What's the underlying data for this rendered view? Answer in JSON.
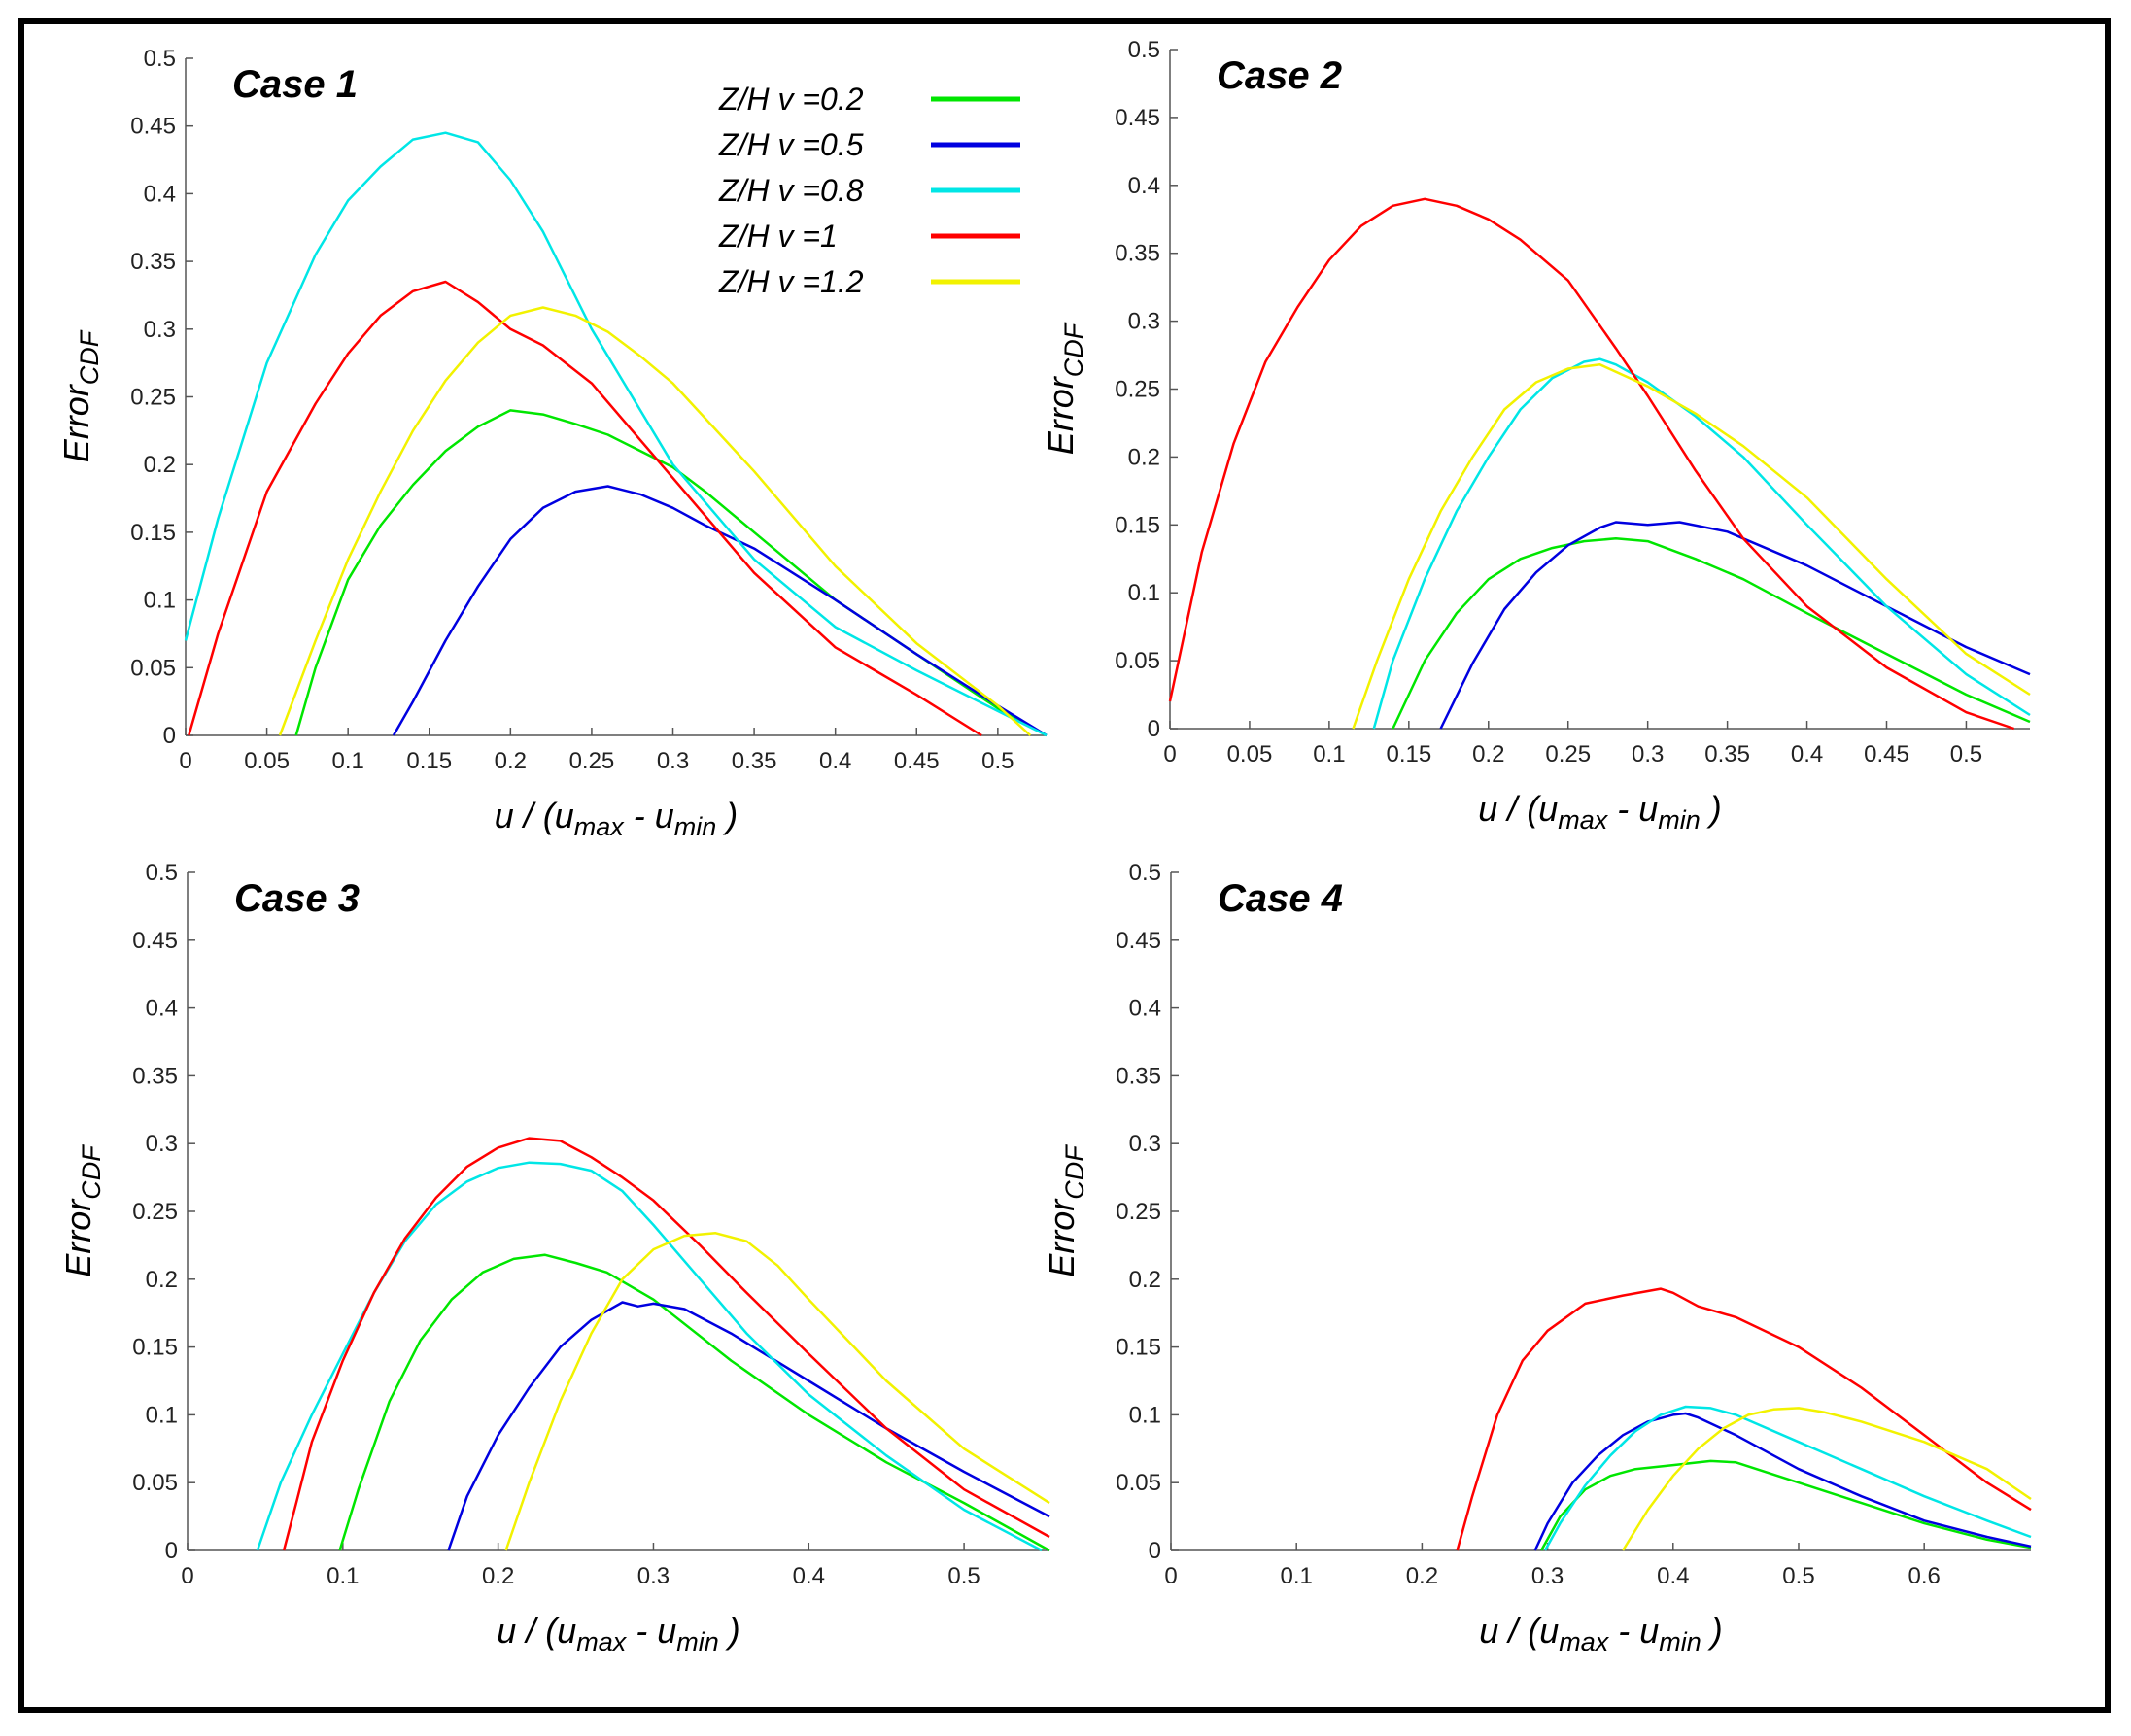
{
  "legend": [
    {
      "label": "Z/H v =0.2",
      "color": "#00e600"
    },
    {
      "label": "Z/H v =0.5",
      "color": "#0000e0"
    },
    {
      "label": "Z/H v =0.8",
      "color": "#00e6e6"
    },
    {
      "label": "Z/H v =1",
      "color": "#ff0000"
    },
    {
      "label": "Z/H v =1.2",
      "color": "#f2f200"
    }
  ],
  "chart_data": [
    {
      "type": "line",
      "title": "Case 1",
      "xlabel": {
        "main": "u / (u",
        "sub1": "max",
        "mid": " - u",
        "sub2": "min",
        "end": " )"
      },
      "ylabel": {
        "main": "Error",
        "sub": "CDF"
      },
      "xlim": [
        0,
        0.53
      ],
      "ylim": [
        0,
        0.5
      ],
      "xticks": [
        0,
        0.05,
        0.1,
        0.15,
        0.2,
        0.25,
        0.3,
        0.35,
        0.4,
        0.45,
        0.5
      ],
      "yticks": [
        0,
        0.05,
        0.1,
        0.15,
        0.2,
        0.25,
        0.3,
        0.35,
        0.4,
        0.45,
        0.5
      ],
      "series": [
        {
          "name": "Z/H v =0.2",
          "x": [
            0.068,
            0.08,
            0.1,
            0.12,
            0.14,
            0.16,
            0.18,
            0.2,
            0.22,
            0.24,
            0.26,
            0.28,
            0.3,
            0.32,
            0.35,
            0.4,
            0.45,
            0.5,
            0.53
          ],
          "y": [
            0,
            0.05,
            0.115,
            0.155,
            0.185,
            0.21,
            0.228,
            0.24,
            0.237,
            0.23,
            0.222,
            0.21,
            0.198,
            0.18,
            0.15,
            0.1,
            0.06,
            0.02,
            0
          ]
        },
        {
          "name": "Z/H v =0.5",
          "x": [
            0.128,
            0.14,
            0.16,
            0.18,
            0.2,
            0.22,
            0.24,
            0.26,
            0.28,
            0.3,
            0.32,
            0.35,
            0.4,
            0.45,
            0.5,
            0.53
          ],
          "y": [
            0,
            0.025,
            0.07,
            0.11,
            0.145,
            0.168,
            0.18,
            0.184,
            0.178,
            0.168,
            0.155,
            0.138,
            0.1,
            0.06,
            0.022,
            0
          ]
        },
        {
          "name": "Z/H v =0.8",
          "x": [
            0,
            0.02,
            0.05,
            0.08,
            0.1,
            0.12,
            0.14,
            0.16,
            0.18,
            0.2,
            0.22,
            0.25,
            0.3,
            0.35,
            0.4,
            0.45,
            0.5,
            0.53
          ],
          "y": [
            0.07,
            0.16,
            0.275,
            0.355,
            0.395,
            0.42,
            0.44,
            0.445,
            0.438,
            0.41,
            0.372,
            0.3,
            0.2,
            0.13,
            0.08,
            0.048,
            0.018,
            0
          ]
        },
        {
          "name": "Z/H v =1",
          "x": [
            0.002,
            0.02,
            0.05,
            0.08,
            0.1,
            0.12,
            0.14,
            0.16,
            0.18,
            0.2,
            0.22,
            0.25,
            0.3,
            0.35,
            0.4,
            0.45,
            0.49
          ],
          "y": [
            0,
            0.075,
            0.18,
            0.245,
            0.282,
            0.31,
            0.328,
            0.335,
            0.32,
            0.3,
            0.288,
            0.26,
            0.19,
            0.12,
            0.065,
            0.03,
            0
          ]
        },
        {
          "name": "Z/H v =1.2",
          "x": [
            0.058,
            0.08,
            0.1,
            0.12,
            0.14,
            0.16,
            0.18,
            0.2,
            0.22,
            0.24,
            0.26,
            0.28,
            0.3,
            0.35,
            0.4,
            0.45,
            0.5,
            0.52
          ],
          "y": [
            0,
            0.07,
            0.13,
            0.18,
            0.225,
            0.262,
            0.29,
            0.31,
            0.316,
            0.31,
            0.298,
            0.28,
            0.26,
            0.195,
            0.125,
            0.068,
            0.022,
            0
          ]
        }
      ]
    },
    {
      "type": "line",
      "title": "Case 2",
      "xlabel": {
        "main": "u / (u",
        "sub1": "max",
        "mid": " - u",
        "sub2": "min",
        "end": " )"
      },
      "ylabel": {
        "main": "Error",
        "sub": "CDF"
      },
      "xlim": [
        0,
        0.54
      ],
      "ylim": [
        0,
        0.5
      ],
      "xticks": [
        0,
        0.05,
        0.1,
        0.15,
        0.2,
        0.25,
        0.3,
        0.35,
        0.4,
        0.45,
        0.5
      ],
      "yticks": [
        0,
        0.05,
        0.1,
        0.15,
        0.2,
        0.25,
        0.3,
        0.35,
        0.4,
        0.45,
        0.5
      ],
      "series": [
        {
          "name": "Z/H v =0.2",
          "x": [
            0.14,
            0.16,
            0.18,
            0.2,
            0.22,
            0.24,
            0.26,
            0.28,
            0.3,
            0.33,
            0.36,
            0.4,
            0.45,
            0.5,
            0.54
          ],
          "y": [
            0,
            0.05,
            0.085,
            0.11,
            0.125,
            0.133,
            0.138,
            0.14,
            0.138,
            0.125,
            0.11,
            0.085,
            0.055,
            0.025,
            0.005
          ]
        },
        {
          "name": "Z/H v =0.5",
          "x": [
            0.17,
            0.19,
            0.21,
            0.23,
            0.25,
            0.27,
            0.28,
            0.3,
            0.32,
            0.35,
            0.4,
            0.45,
            0.5,
            0.54
          ],
          "y": [
            0,
            0.048,
            0.088,
            0.115,
            0.135,
            0.148,
            0.152,
            0.15,
            0.152,
            0.145,
            0.12,
            0.09,
            0.06,
            0.04
          ]
        },
        {
          "name": "Z/H v =0.8",
          "x": [
            0.128,
            0.14,
            0.16,
            0.18,
            0.2,
            0.22,
            0.24,
            0.26,
            0.27,
            0.28,
            0.3,
            0.33,
            0.36,
            0.4,
            0.45,
            0.5,
            0.54
          ],
          "y": [
            0,
            0.05,
            0.11,
            0.16,
            0.2,
            0.235,
            0.258,
            0.27,
            0.272,
            0.268,
            0.255,
            0.23,
            0.2,
            0.15,
            0.09,
            0.04,
            0.01
          ]
        },
        {
          "name": "Z/H v =1",
          "x": [
            0,
            0.02,
            0.04,
            0.06,
            0.08,
            0.1,
            0.12,
            0.14,
            0.16,
            0.18,
            0.2,
            0.22,
            0.25,
            0.28,
            0.3,
            0.33,
            0.36,
            0.4,
            0.45,
            0.5,
            0.53
          ],
          "y": [
            0.02,
            0.13,
            0.21,
            0.27,
            0.31,
            0.345,
            0.37,
            0.385,
            0.39,
            0.385,
            0.375,
            0.36,
            0.33,
            0.28,
            0.245,
            0.19,
            0.14,
            0.09,
            0.045,
            0.012,
            0
          ]
        },
        {
          "name": "Z/H v =1.2",
          "x": [
            0.115,
            0.13,
            0.15,
            0.17,
            0.19,
            0.21,
            0.23,
            0.25,
            0.27,
            0.3,
            0.33,
            0.36,
            0.4,
            0.45,
            0.5,
            0.54
          ],
          "y": [
            0,
            0.05,
            0.11,
            0.16,
            0.2,
            0.235,
            0.255,
            0.265,
            0.268,
            0.252,
            0.232,
            0.208,
            0.17,
            0.11,
            0.055,
            0.025
          ]
        }
      ]
    },
    {
      "type": "line",
      "title": "Case 3",
      "xlabel": {
        "main": "u / (u",
        "sub1": "max",
        "mid": " - u",
        "sub2": "min",
        "end": " )"
      },
      "ylabel": {
        "main": "Error",
        "sub": "CDF"
      },
      "xlim": [
        0,
        0.555
      ],
      "ylim": [
        0,
        0.5
      ],
      "xticks": [
        0,
        0.1,
        0.2,
        0.3,
        0.4,
        0.5
      ],
      "yticks": [
        0,
        0.05,
        0.1,
        0.15,
        0.2,
        0.25,
        0.3,
        0.35,
        0.4,
        0.45,
        0.5
      ],
      "series": [
        {
          "name": "Z/H v =0.2",
          "x": [
            0.098,
            0.11,
            0.13,
            0.15,
            0.17,
            0.19,
            0.21,
            0.23,
            0.25,
            0.27,
            0.3,
            0.35,
            0.4,
            0.45,
            0.5,
            0.555
          ],
          "y": [
            0,
            0.045,
            0.11,
            0.155,
            0.185,
            0.205,
            0.215,
            0.218,
            0.212,
            0.205,
            0.185,
            0.14,
            0.1,
            0.065,
            0.035,
            0
          ]
        },
        {
          "name": "Z/H v =0.5",
          "x": [
            0.168,
            0.18,
            0.2,
            0.22,
            0.24,
            0.26,
            0.28,
            0.29,
            0.3,
            0.32,
            0.35,
            0.4,
            0.45,
            0.5,
            0.555
          ],
          "y": [
            0,
            0.04,
            0.085,
            0.12,
            0.15,
            0.17,
            0.183,
            0.18,
            0.182,
            0.178,
            0.16,
            0.125,
            0.09,
            0.058,
            0.025
          ]
        },
        {
          "name": "Z/H v =0.8",
          "x": [
            0.045,
            0.06,
            0.08,
            0.1,
            0.12,
            0.14,
            0.16,
            0.18,
            0.2,
            0.22,
            0.24,
            0.26,
            0.28,
            0.3,
            0.33,
            0.36,
            0.4,
            0.45,
            0.5,
            0.55
          ],
          "y": [
            0,
            0.05,
            0.1,
            0.145,
            0.19,
            0.228,
            0.255,
            0.272,
            0.282,
            0.286,
            0.285,
            0.28,
            0.265,
            0.24,
            0.2,
            0.16,
            0.115,
            0.07,
            0.03,
            0
          ]
        },
        {
          "name": "Z/H v =1",
          "x": [
            0.062,
            0.07,
            0.08,
            0.1,
            0.12,
            0.14,
            0.16,
            0.18,
            0.2,
            0.22,
            0.24,
            0.26,
            0.28,
            0.3,
            0.33,
            0.36,
            0.4,
            0.45,
            0.5,
            0.555
          ],
          "y": [
            0,
            0.035,
            0.08,
            0.14,
            0.19,
            0.23,
            0.26,
            0.283,
            0.297,
            0.304,
            0.302,
            0.29,
            0.275,
            0.258,
            0.225,
            0.19,
            0.145,
            0.09,
            0.045,
            0.01
          ]
        },
        {
          "name": "Z/H v =1.2",
          "x": [
            0.205,
            0.22,
            0.24,
            0.26,
            0.28,
            0.3,
            0.32,
            0.34,
            0.36,
            0.38,
            0.4,
            0.45,
            0.5,
            0.555
          ],
          "y": [
            0,
            0.05,
            0.11,
            0.16,
            0.2,
            0.222,
            0.232,
            0.234,
            0.228,
            0.21,
            0.185,
            0.125,
            0.075,
            0.035
          ]
        }
      ]
    },
    {
      "type": "line",
      "title": "Case 4",
      "xlabel": {
        "main": "u / (u",
        "sub1": "max",
        "mid": " - u",
        "sub2": "min",
        "end": " )"
      },
      "ylabel": {
        "main": "Error",
        "sub": "CDF"
      },
      "xlim": [
        0,
        0.685
      ],
      "ylim": [
        0,
        0.5
      ],
      "xticks": [
        0,
        0.1,
        0.2,
        0.3,
        0.4,
        0.5,
        0.6
      ],
      "yticks": [
        0,
        0.05,
        0.1,
        0.15,
        0.2,
        0.25,
        0.3,
        0.35,
        0.4,
        0.45,
        0.5
      ],
      "series": [
        {
          "name": "Z/H v =0.2",
          "x": [
            0.295,
            0.31,
            0.33,
            0.35,
            0.37,
            0.4,
            0.43,
            0.45,
            0.5,
            0.55,
            0.6,
            0.65,
            0.685
          ],
          "y": [
            0,
            0.025,
            0.045,
            0.055,
            0.06,
            0.063,
            0.066,
            0.065,
            0.05,
            0.035,
            0.02,
            0.008,
            0.002
          ]
        },
        {
          "name": "Z/H v =0.5",
          "x": [
            0.29,
            0.3,
            0.32,
            0.34,
            0.36,
            0.38,
            0.4,
            0.41,
            0.42,
            0.45,
            0.5,
            0.55,
            0.6,
            0.65,
            0.685
          ],
          "y": [
            0,
            0.02,
            0.05,
            0.07,
            0.085,
            0.095,
            0.1,
            0.101,
            0.098,
            0.085,
            0.06,
            0.04,
            0.022,
            0.01,
            0.003
          ]
        },
        {
          "name": "Z/H v =0.8",
          "x": [
            0.298,
            0.31,
            0.33,
            0.35,
            0.37,
            0.39,
            0.41,
            0.43,
            0.45,
            0.5,
            0.55,
            0.6,
            0.65,
            0.685
          ],
          "y": [
            0,
            0.02,
            0.048,
            0.07,
            0.088,
            0.1,
            0.106,
            0.105,
            0.1,
            0.08,
            0.06,
            0.04,
            0.022,
            0.01
          ]
        },
        {
          "name": "Z/H v =1",
          "x": [
            0.228,
            0.24,
            0.26,
            0.28,
            0.3,
            0.33,
            0.36,
            0.39,
            0.4,
            0.42,
            0.45,
            0.5,
            0.55,
            0.6,
            0.65,
            0.685
          ],
          "y": [
            0,
            0.04,
            0.1,
            0.14,
            0.162,
            0.182,
            0.188,
            0.193,
            0.19,
            0.18,
            0.172,
            0.15,
            0.12,
            0.085,
            0.05,
            0.03
          ]
        },
        {
          "name": "Z/H v =1.2",
          "x": [
            0.36,
            0.38,
            0.4,
            0.42,
            0.44,
            0.46,
            0.48,
            0.5,
            0.52,
            0.55,
            0.6,
            0.65,
            0.685
          ],
          "y": [
            0,
            0.03,
            0.055,
            0.075,
            0.09,
            0.1,
            0.104,
            0.105,
            0.102,
            0.095,
            0.08,
            0.06,
            0.038
          ]
        }
      ]
    }
  ]
}
